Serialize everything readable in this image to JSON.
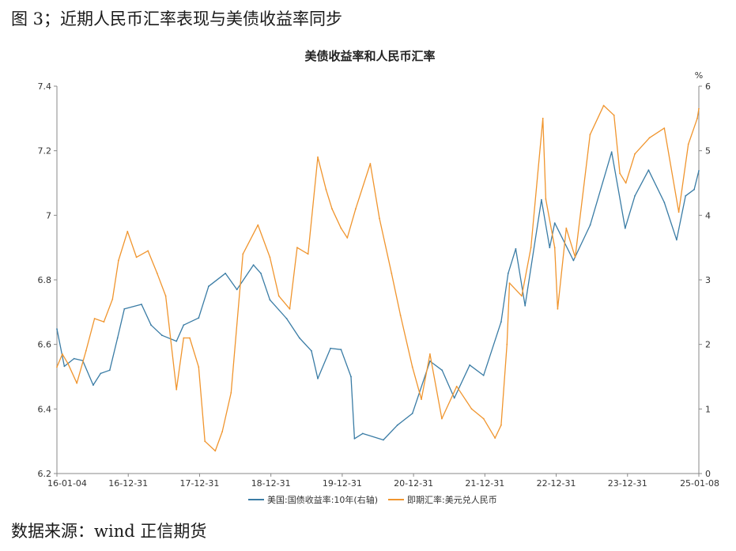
{
  "caption": "图 3；近期人民币汇率表现与美债收益率同步",
  "source": "数据来源：wind 正信期货",
  "chart_data": {
    "type": "line",
    "title": "美债收益率和人民币汇率",
    "x_ticks": [
      "16-01-04",
      "16-12-31",
      "17-12-31",
      "18-12-31",
      "19-12-31",
      "20-12-31",
      "21-12-31",
      "22-12-31",
      "23-12-31",
      "25-01-08"
    ],
    "x_range": [
      "2016-01-04",
      "2025-01-08"
    ],
    "left_axis": {
      "range": [
        6.2,
        7.4
      ],
      "ticks": [
        "6.2",
        "6.4",
        "6.6",
        "6.8",
        "7",
        "7.2",
        "7.4"
      ]
    },
    "right_axis": {
      "unit": "%",
      "range": [
        0,
        6
      ],
      "ticks": [
        "0",
        "1",
        "2",
        "3",
        "4",
        "5",
        "6"
      ]
    },
    "grid": false,
    "legend_position": "bottom",
    "colors": {
      "yield": "#3a7ca5",
      "fx": "#f0952e"
    },
    "series": [
      {
        "name": "美国:国债收益率:10年(右轴)",
        "axis": "right",
        "color": "#3a7ca5",
        "points": [
          [
            "2016-01-04",
            2.24
          ],
          [
            "2016-02-11",
            1.66
          ],
          [
            "2016-04-01",
            1.78
          ],
          [
            "2016-05-15",
            1.75
          ],
          [
            "2016-07-08",
            1.37
          ],
          [
            "2016-08-15",
            1.55
          ],
          [
            "2016-10-01",
            1.6
          ],
          [
            "2016-11-10",
            2.1
          ],
          [
            "2016-12-15",
            2.55
          ],
          [
            "2017-03-13",
            2.62
          ],
          [
            "2017-05-01",
            2.3
          ],
          [
            "2017-06-26",
            2.14
          ],
          [
            "2017-09-08",
            2.05
          ],
          [
            "2017-10-15",
            2.3
          ],
          [
            "2017-12-31",
            2.41
          ],
          [
            "2018-02-20",
            2.9
          ],
          [
            "2018-05-17",
            3.1
          ],
          [
            "2018-07-15",
            2.85
          ],
          [
            "2018-10-08",
            3.23
          ],
          [
            "2018-11-15",
            3.1
          ],
          [
            "2018-12-31",
            2.69
          ],
          [
            "2019-03-27",
            2.4
          ],
          [
            "2019-06-01",
            2.1
          ],
          [
            "2019-08-01",
            1.9
          ],
          [
            "2019-09-03",
            1.47
          ],
          [
            "2019-11-07",
            1.94
          ],
          [
            "2019-12-31",
            1.92
          ],
          [
            "2020-02-20",
            1.5
          ],
          [
            "2020-03-09",
            0.54
          ],
          [
            "2020-04-20",
            0.62
          ],
          [
            "2020-08-04",
            0.52
          ],
          [
            "2020-10-15",
            0.75
          ],
          [
            "2020-12-31",
            0.93
          ],
          [
            "2021-03-31",
            1.74
          ],
          [
            "2021-06-01",
            1.6
          ],
          [
            "2021-08-03",
            1.17
          ],
          [
            "2021-10-21",
            1.68
          ],
          [
            "2021-12-31",
            1.52
          ],
          [
            "2022-03-31",
            2.35
          ],
          [
            "2022-05-06",
            3.1
          ],
          [
            "2022-06-14",
            3.48
          ],
          [
            "2022-08-01",
            2.6
          ],
          [
            "2022-10-24",
            4.24
          ],
          [
            "2022-12-05",
            3.5
          ],
          [
            "2022-12-31",
            3.88
          ],
          [
            "2023-04-06",
            3.3
          ],
          [
            "2023-07-01",
            3.85
          ],
          [
            "2023-10-19",
            4.98
          ],
          [
            "2023-12-27",
            3.8
          ],
          [
            "2024-02-15",
            4.3
          ],
          [
            "2024-04-25",
            4.7
          ],
          [
            "2024-07-15",
            4.2
          ],
          [
            "2024-09-16",
            3.62
          ],
          [
            "2024-11-01",
            4.3
          ],
          [
            "2024-12-15",
            4.4
          ],
          [
            "2025-01-08",
            4.69
          ]
        ]
      },
      {
        "name": "即期汇率:美元兑人民币",
        "axis": "left",
        "color": "#f0952e",
        "points": [
          [
            "2016-01-04",
            6.53
          ],
          [
            "2016-02-01",
            6.57
          ],
          [
            "2016-03-01",
            6.54
          ],
          [
            "2016-04-15",
            6.48
          ],
          [
            "2016-06-01",
            6.58
          ],
          [
            "2016-07-15",
            6.68
          ],
          [
            "2016-09-01",
            6.67
          ],
          [
            "2016-10-15",
            6.74
          ],
          [
            "2016-11-15",
            6.86
          ],
          [
            "2016-12-31",
            6.95
          ],
          [
            "2017-02-15",
            6.87
          ],
          [
            "2017-04-15",
            6.89
          ],
          [
            "2017-06-01",
            6.82
          ],
          [
            "2017-07-15",
            6.75
          ],
          [
            "2017-09-08",
            6.46
          ],
          [
            "2017-10-15",
            6.62
          ],
          [
            "2017-11-15",
            6.62
          ],
          [
            "2017-12-31",
            6.53
          ],
          [
            "2018-02-01",
            6.3
          ],
          [
            "2018-03-26",
            6.27
          ],
          [
            "2018-05-01",
            6.33
          ],
          [
            "2018-06-15",
            6.45
          ],
          [
            "2018-08-15",
            6.88
          ],
          [
            "2018-10-31",
            6.97
          ],
          [
            "2018-12-31",
            6.87
          ],
          [
            "2019-02-15",
            6.75
          ],
          [
            "2019-04-12",
            6.71
          ],
          [
            "2019-05-20",
            6.9
          ],
          [
            "2019-07-15",
            6.88
          ],
          [
            "2019-09-03",
            7.18
          ],
          [
            "2019-10-15",
            7.08
          ],
          [
            "2019-11-15",
            7.02
          ],
          [
            "2019-12-31",
            6.96
          ],
          [
            "2020-02-01",
            6.93
          ],
          [
            "2020-03-15",
            7.02
          ],
          [
            "2020-05-29",
            7.16
          ],
          [
            "2020-07-15",
            6.99
          ],
          [
            "2020-09-15",
            6.82
          ],
          [
            "2020-10-31",
            6.69
          ],
          [
            "2020-12-31",
            6.53
          ],
          [
            "2021-02-15",
            6.43
          ],
          [
            "2021-03-31",
            6.57
          ],
          [
            "2021-05-31",
            6.37
          ],
          [
            "2021-08-15",
            6.47
          ],
          [
            "2021-10-31",
            6.4
          ],
          [
            "2021-12-31",
            6.37
          ],
          [
            "2022-02-28",
            6.31
          ],
          [
            "2022-03-31",
            6.35
          ],
          [
            "2022-04-30",
            6.6
          ],
          [
            "2022-05-13",
            6.79
          ],
          [
            "2022-07-15",
            6.75
          ],
          [
            "2022-08-31",
            6.9
          ],
          [
            "2022-10-31",
            7.3
          ],
          [
            "2022-11-15",
            7.05
          ],
          [
            "2022-12-31",
            6.9
          ],
          [
            "2023-01-15",
            6.71
          ],
          [
            "2023-02-28",
            6.96
          ],
          [
            "2023-04-15",
            6.87
          ],
          [
            "2023-06-30",
            7.25
          ],
          [
            "2023-09-08",
            7.34
          ],
          [
            "2023-10-31",
            7.31
          ],
          [
            "2023-11-30",
            7.13
          ],
          [
            "2023-12-31",
            7.1
          ],
          [
            "2024-02-15",
            7.19
          ],
          [
            "2024-04-30",
            7.24
          ],
          [
            "2024-07-15",
            7.27
          ],
          [
            "2024-09-27",
            7.01
          ],
          [
            "2024-11-15",
            7.22
          ],
          [
            "2024-12-31",
            7.3
          ],
          [
            "2025-01-08",
            7.33
          ]
        ]
      }
    ]
  }
}
